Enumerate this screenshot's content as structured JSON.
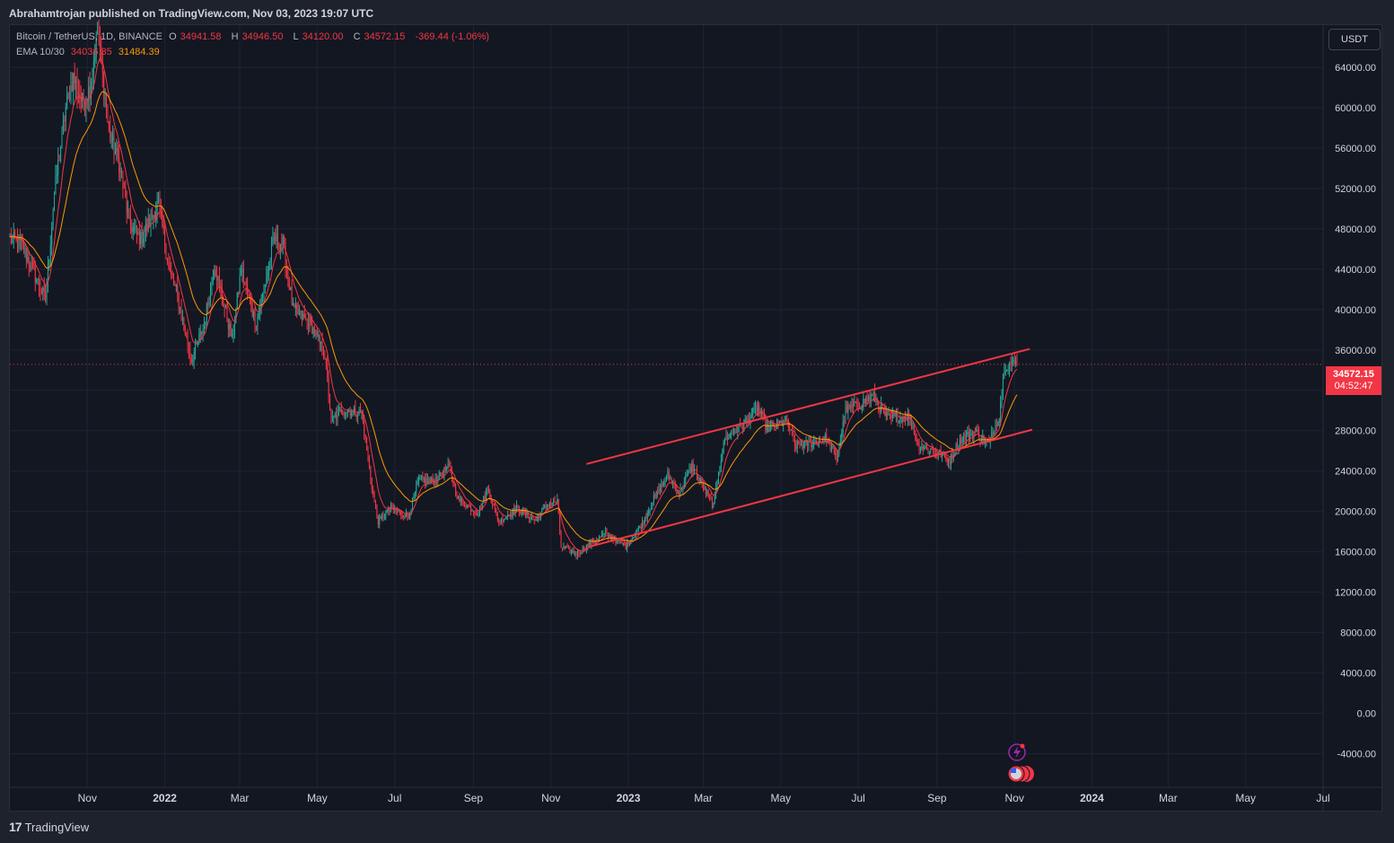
{
  "header": {
    "published": "Abrahamtrojan published on TradingView.com, Nov 03, 2023 19:07 UTC"
  },
  "legend": {
    "symbol": "Bitcoin / TetherUS, 1D, BINANCE",
    "o_label": "O",
    "o": "34941.58",
    "h_label": "H",
    "h": "34946.50",
    "l_label": "L",
    "l": "34120.00",
    "c_label": "C",
    "c": "34572.15",
    "change": "-369.44 (-1.06%)",
    "ema_label": "EMA 10/30",
    "ema_fast": "34036.35",
    "ema_slow": "31484.39"
  },
  "currency_button": "USDT",
  "last_price": {
    "price": "34572.15",
    "countdown": "04:52:47"
  },
  "footer": {
    "brand": "TradingView",
    "brand_mark": "17"
  },
  "colors": {
    "up": "#26a69a",
    "down": "#f23645",
    "ema_fast": "#f23645",
    "ema_slow": "#ff9800",
    "channel": "#f23645",
    "background": "#131722",
    "grid": "#1f2431"
  },
  "chart_data": {
    "type": "candlestick",
    "title": "Bitcoin / TetherUS, 1D, BINANCE",
    "ylim": [
      -4000,
      68000
    ],
    "y_ticks": [
      "64000.00",
      "60000.00",
      "56000.00",
      "52000.00",
      "48000.00",
      "44000.00",
      "40000.00",
      "36000.00",
      "32000.00",
      "28000.00",
      "24000.00",
      "20000.00",
      "16000.00",
      "12000.00",
      "8000.00",
      "4000.00",
      "0.00",
      "-4000.00"
    ],
    "x_ticks": [
      {
        "date": "2021-11-01",
        "label": "Nov"
      },
      {
        "date": "2022-01-01",
        "label": "2022"
      },
      {
        "date": "2022-03-01",
        "label": "Mar"
      },
      {
        "date": "2022-05-01",
        "label": "May"
      },
      {
        "date": "2022-07-01",
        "label": "Jul"
      },
      {
        "date": "2022-09-01",
        "label": "Sep"
      },
      {
        "date": "2022-11-01",
        "label": "Nov"
      },
      {
        "date": "2023-01-01",
        "label": "2023"
      },
      {
        "date": "2023-03-01",
        "label": "Mar"
      },
      {
        "date": "2023-05-01",
        "label": "May"
      },
      {
        "date": "2023-07-01",
        "label": "Jul"
      },
      {
        "date": "2023-09-01",
        "label": "Sep"
      },
      {
        "date": "2023-11-01",
        "label": "Nov"
      },
      {
        "date": "2024-01-01",
        "label": "2024"
      },
      {
        "date": "2024-03-01",
        "label": "Mar"
      },
      {
        "date": "2024-05-01",
        "label": "May"
      },
      {
        "date": "2024-07-01",
        "label": "Jul"
      }
    ],
    "x_range": [
      "2021-09-01",
      "2024-07-01"
    ],
    "close_series": [
      [
        "2021-09-01",
        47000
      ],
      [
        "2021-09-10",
        46500
      ],
      [
        "2021-09-22",
        43000
      ],
      [
        "2021-09-29",
        41000
      ],
      [
        "2021-10-06",
        51500
      ],
      [
        "2021-10-15",
        60000
      ],
      [
        "2021-10-21",
        63000
      ],
      [
        "2021-10-28",
        60500
      ],
      [
        "2021-11-03",
        62000
      ],
      [
        "2021-11-09",
        67500
      ],
      [
        "2021-11-18",
        57500
      ],
      [
        "2021-11-26",
        54500
      ],
      [
        "2021-12-04",
        48500
      ],
      [
        "2021-12-13",
        47000
      ],
      [
        "2021-12-27",
        50500
      ],
      [
        "2022-01-05",
        43500
      ],
      [
        "2022-01-10",
        41800
      ],
      [
        "2022-01-22",
        35000
      ],
      [
        "2022-02-01",
        38500
      ],
      [
        "2022-02-09",
        44500
      ],
      [
        "2022-02-23",
        37000
      ],
      [
        "2022-03-02",
        44000
      ],
      [
        "2022-03-14",
        38500
      ],
      [
        "2022-03-28",
        47000
      ],
      [
        "2022-04-04",
        46500
      ],
      [
        "2022-04-12",
        40000
      ],
      [
        "2022-04-26",
        38500
      ],
      [
        "2022-05-07",
        35500
      ],
      [
        "2022-05-12",
        29000
      ],
      [
        "2022-05-20",
        30000
      ],
      [
        "2022-06-05",
        29800
      ],
      [
        "2022-06-13",
        22500
      ],
      [
        "2022-06-18",
        19000
      ],
      [
        "2022-06-28",
        20300
      ],
      [
        "2022-07-12",
        19500
      ],
      [
        "2022-07-20",
        23200
      ],
      [
        "2022-08-01",
        23000
      ],
      [
        "2022-08-13",
        24500
      ],
      [
        "2022-08-20",
        21200
      ],
      [
        "2022-09-05",
        19800
      ],
      [
        "2022-09-12",
        22300
      ],
      [
        "2022-09-21",
        19000
      ],
      [
        "2022-10-05",
        20300
      ],
      [
        "2022-10-20",
        19100
      ],
      [
        "2022-10-29",
        20700
      ],
      [
        "2022-11-06",
        21000
      ],
      [
        "2022-11-09",
        16500
      ],
      [
        "2022-11-21",
        15800
      ],
      [
        "2022-12-05",
        17100
      ],
      [
        "2022-12-14",
        17800
      ],
      [
        "2022-12-30",
        16550
      ],
      [
        "2023-01-12",
        18800
      ],
      [
        "2023-01-20",
        21000
      ],
      [
        "2023-02-01",
        23600
      ],
      [
        "2023-02-10",
        21800
      ],
      [
        "2023-02-20",
        24500
      ],
      [
        "2023-03-09",
        20500
      ],
      [
        "2023-03-13",
        24100
      ],
      [
        "2023-03-18",
        27200
      ],
      [
        "2023-04-01",
        28500
      ],
      [
        "2023-04-13",
        30300
      ],
      [
        "2023-04-20",
        28200
      ],
      [
        "2023-05-06",
        29000
      ],
      [
        "2023-05-12",
        26500
      ],
      [
        "2023-05-27",
        26800
      ],
      [
        "2023-06-06",
        27200
      ],
      [
        "2023-06-14",
        25100
      ],
      [
        "2023-06-21",
        30000
      ],
      [
        "2023-07-01",
        30600
      ],
      [
        "2023-07-13",
        31400
      ],
      [
        "2023-07-24",
        29200
      ],
      [
        "2023-08-10",
        29400
      ],
      [
        "2023-08-17",
        26600
      ],
      [
        "2023-09-01",
        25900
      ],
      [
        "2023-09-11",
        25100
      ],
      [
        "2023-09-20",
        27200
      ],
      [
        "2023-10-01",
        27900
      ],
      [
        "2023-10-12",
        26700
      ],
      [
        "2023-10-20",
        29600
      ],
      [
        "2023-10-24",
        34500
      ],
      [
        "2023-10-31",
        34600
      ],
      [
        "2023-11-03",
        34572.15
      ]
    ],
    "ema_fast_final": 34036.35,
    "ema_slow_final": 31484.39,
    "channel_lines": [
      {
        "name": "upper",
        "from": [
          "2022-11-29",
          24700
        ],
        "to": [
          "2023-11-13",
          36100
        ]
      },
      {
        "name": "lower",
        "from": [
          "2022-12-01",
          16500
        ],
        "to": [
          "2023-11-15",
          28100
        ]
      }
    ],
    "last_price": 34572.15
  }
}
